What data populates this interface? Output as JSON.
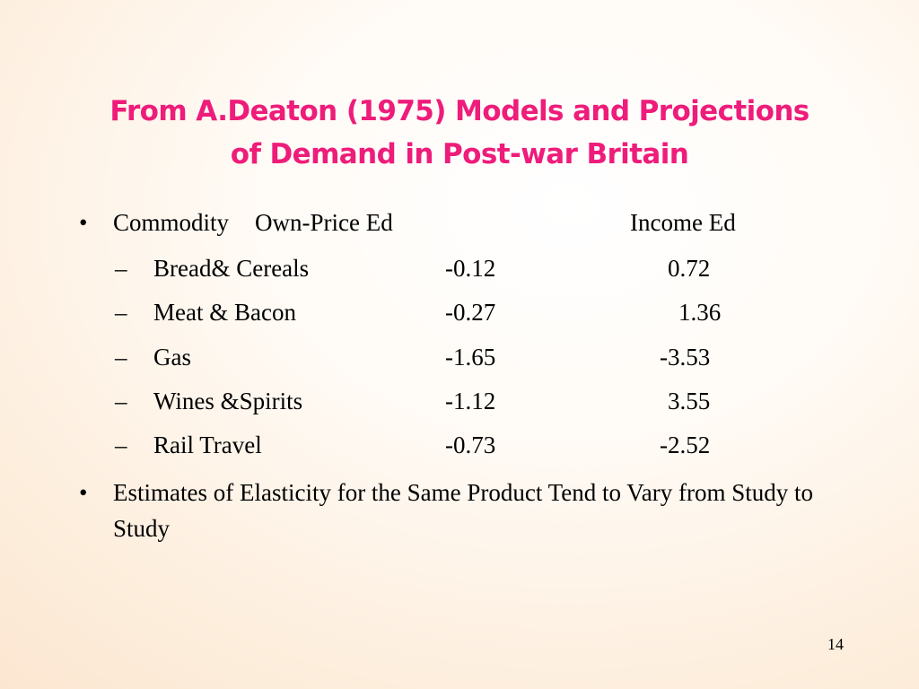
{
  "title": {
    "line1": "From A.Deaton (1975) Models and  Projections",
    "line2": "of Demand in Post-war Britain"
  },
  "bullet_symbol": "•",
  "dash_symbol": "–",
  "header": {
    "commodity": "Commodity",
    "own_price": "Own-Price Ed",
    "income": "Income Ed"
  },
  "rows": [
    {
      "commodity": "Bread& Cereals",
      "own_price": "-0.12",
      "income": "0.72"
    },
    {
      "commodity": "Meat & Bacon",
      "own_price": "-0.27",
      "income": "1.36"
    },
    {
      "commodity": "Gas",
      "own_price": "-1.65",
      "income": "-3.53"
    },
    {
      "commodity": "Wines &Spirits",
      "own_price": "-1.12",
      "income": "3.55"
    },
    {
      "commodity": "Rail Travel",
      "own_price": "-0.73",
      "income": "-2.52"
    }
  ],
  "note": "Estimates of Elasticity for the Same Product Tend to Vary from Study to Study",
  "page_number": "14",
  "colors": {
    "title": "#ee1c7a",
    "text": "#000000"
  }
}
